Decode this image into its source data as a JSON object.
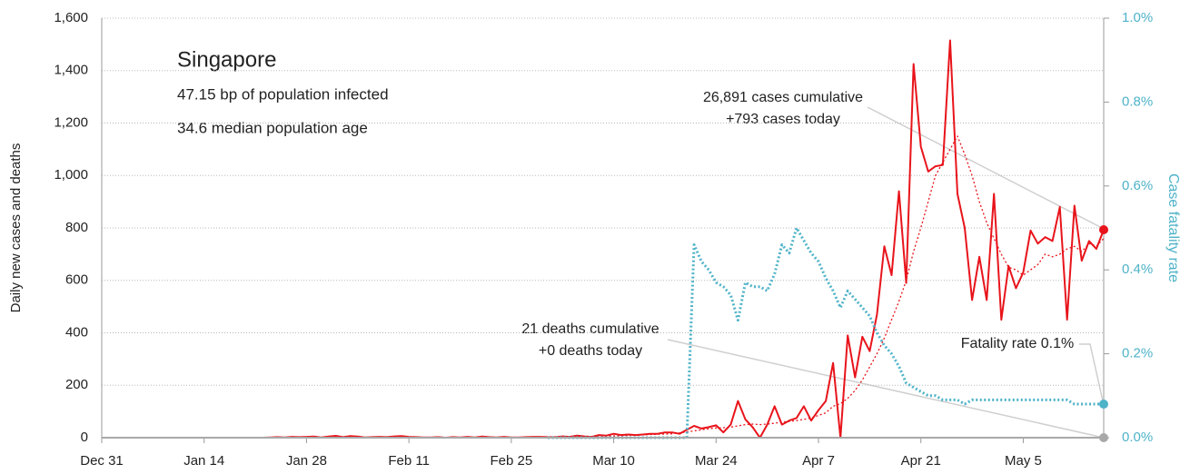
{
  "chart_data": {
    "type": "line",
    "title": "Singapore",
    "subtitles": [
      "47.15 bp of population infected",
      "34.6 median population age"
    ],
    "ylabel": "Daily new cases and deaths",
    "y2label": "Case fatality rate",
    "annotations": [
      [
        "26,891 cases cumulative",
        "+793 cases today"
      ],
      [
        "21 deaths cumulative",
        "+0 deaths today"
      ],
      [
        "Fatality rate 0.1%"
      ]
    ],
    "x": [
      "Dec 31",
      "Jan 1",
      "Jan 2",
      "Jan 3",
      "Jan 4",
      "Jan 5",
      "Jan 6",
      "Jan 7",
      "Jan 8",
      "Jan 9",
      "Jan 10",
      "Jan 11",
      "Jan 12",
      "Jan 13",
      "Jan 14",
      "Jan 15",
      "Jan 16",
      "Jan 17",
      "Jan 18",
      "Jan 19",
      "Jan 20",
      "Jan 21",
      "Jan 22",
      "Jan 23",
      "Jan 24",
      "Jan 25",
      "Jan 26",
      "Jan 27",
      "Jan 28",
      "Jan 29",
      "Jan 30",
      "Jan 31",
      "Feb 1",
      "Feb 2",
      "Feb 3",
      "Feb 4",
      "Feb 5",
      "Feb 6",
      "Feb 7",
      "Feb 8",
      "Feb 9",
      "Feb 10",
      "Feb 11",
      "Feb 12",
      "Feb 13",
      "Feb 14",
      "Feb 15",
      "Feb 16",
      "Feb 17",
      "Feb 18",
      "Feb 19",
      "Feb 20",
      "Feb 21",
      "Feb 22",
      "Feb 23",
      "Feb 24",
      "Feb 25",
      "Feb 26",
      "Feb 27",
      "Feb 28",
      "Feb 29",
      "Mar 1",
      "Mar 2",
      "Mar 3",
      "Mar 4",
      "Mar 5",
      "Mar 6",
      "Mar 7",
      "Mar 8",
      "Mar 9",
      "Mar 10",
      "Mar 11",
      "Mar 12",
      "Mar 13",
      "Mar 14",
      "Mar 15",
      "Mar 16",
      "Mar 17",
      "Mar 18",
      "Mar 19",
      "Mar 20",
      "Mar 21",
      "Mar 22",
      "Mar 23",
      "Mar 24",
      "Mar 25",
      "Mar 26",
      "Mar 27",
      "Mar 28",
      "Mar 29",
      "Mar 30",
      "Mar 31",
      "Apr 1",
      "Apr 2",
      "Apr 3",
      "Apr 4",
      "Apr 5",
      "Apr 6",
      "Apr 7",
      "Apr 8",
      "Apr 9",
      "Apr 10",
      "Apr 11",
      "Apr 12",
      "Apr 13",
      "Apr 14",
      "Apr 15",
      "Apr 16",
      "Apr 17",
      "Apr 18",
      "Apr 19",
      "Apr 20",
      "Apr 21",
      "Apr 22",
      "Apr 23",
      "Apr 24",
      "Apr 25",
      "Apr 26",
      "Apr 27",
      "Apr 28",
      "Apr 29",
      "Apr 30",
      "May 1",
      "May 2",
      "May 3",
      "May 4",
      "May 5",
      "May 6",
      "May 7",
      "May 8",
      "May 9",
      "May 10",
      "May 11",
      "May 12",
      "May 13",
      "May 14",
      "May 15",
      "May 16"
    ],
    "xticks": [
      "Dec 31",
      "Jan 14",
      "Jan 28",
      "Feb 11",
      "Feb 25",
      "Mar 10",
      "Mar 24",
      "Apr 7",
      "Apr 21",
      "May 5"
    ],
    "ylim": [
      0,
      1600
    ],
    "yticks": [
      0,
      200,
      400,
      600,
      800,
      {
        "value": 1000,
        "label": "1,000"
      },
      {
        "value": 1200,
        "label": "1,200"
      },
      {
        "value": 1400,
        "label": "1,400"
      },
      {
        "value": 1600,
        "label": "1,600"
      }
    ],
    "y2lim": [
      0,
      1
    ],
    "y2ticks": [
      {
        "value": 0,
        "label": "0.0%"
      },
      {
        "value": 0.2,
        "label": "0.2%"
      },
      {
        "value": 0.4,
        "label": "0.4%"
      },
      {
        "value": 0.6,
        "label": "0.6%"
      },
      {
        "value": 0.8,
        "label": "0.8%"
      },
      {
        "value": 1,
        "label": "1.0%"
      }
    ],
    "grid": true,
    "series": [
      {
        "color": "#e8141b",
        "dash": false,
        "width": 2,
        "end_marker": true,
        "values": [
          0,
          0,
          0,
          0,
          0,
          0,
          0,
          0,
          0,
          0,
          0,
          0,
          0,
          0,
          0,
          0,
          0,
          0,
          0,
          0,
          0,
          0,
          0,
          1,
          2,
          1,
          3,
          2,
          3,
          4,
          1,
          4,
          7,
          2,
          6,
          4,
          1,
          2,
          3,
          2,
          5,
          6,
          3,
          2,
          1,
          1,
          2,
          0,
          2,
          1,
          3,
          1,
          4,
          2,
          1,
          3,
          1,
          1,
          2,
          3,
          3,
          2,
          2,
          5,
          3,
          8,
          5,
          3,
          10,
          8,
          15,
          10,
          12,
          10,
          12,
          15,
          15,
          20,
          20,
          15,
          30,
          45,
          35,
          40,
          47,
          20,
          50,
          140,
          70,
          40,
          0,
          50,
          120,
          50,
          65,
          75,
          120,
          65,
          105,
          140,
          285,
          0,
          390,
          230,
          385,
          330,
          470,
          730,
          620,
          940,
          590,
          1425,
          1110,
          1015,
          1035,
          1040,
          1515,
          930,
          800,
          525,
          690,
          525,
          930,
          450,
          655,
          570,
          630,
          790,
          740,
          765,
          750,
          880,
          450,
          885,
          675,
          750,
          720,
          793
        ]
      },
      {
        "color": "#e8141b",
        "dash": true,
        "width": 1.3,
        "end_marker": false,
        "values": [
          null,
          null,
          null,
          null,
          null,
          null,
          null,
          null,
          null,
          null,
          null,
          null,
          null,
          null,
          null,
          null,
          null,
          null,
          null,
          null,
          null,
          null,
          null,
          null,
          null,
          null,
          null,
          null,
          null,
          null,
          null,
          null,
          null,
          null,
          null,
          null,
          null,
          null,
          null,
          null,
          null,
          null,
          null,
          null,
          null,
          null,
          null,
          null,
          null,
          null,
          null,
          null,
          null,
          null,
          null,
          null,
          null,
          null,
          null,
          null,
          null,
          3,
          3,
          4,
          4,
          4,
          5,
          5,
          5,
          6,
          7,
          8,
          9,
          10,
          11,
          12,
          13,
          14,
          15,
          18,
          22,
          26,
          30,
          34,
          37,
          38,
          40,
          45,
          50,
          52,
          50,
          52,
          55,
          60,
          62,
          65,
          70,
          75,
          85,
          95,
          120,
          130,
          150,
          180,
          220,
          270,
          320,
          380,
          450,
          520,
          600,
          710,
          800,
          900,
          1000,
          1050,
          1100,
          1150,
          1080,
          1000,
          900,
          820,
          760,
          700,
          650,
          640,
          620,
          640,
          660,
          700,
          690,
          700,
          720,
          730,
          710,
          740,
          730,
          760
        ]
      },
      {
        "color": "#4fb3c8",
        "dash": true,
        "width": 3,
        "axis": "y2",
        "end_marker": true,
        "values": [
          null,
          null,
          null,
          null,
          null,
          null,
          null,
          null,
          null,
          null,
          null,
          null,
          null,
          null,
          null,
          null,
          null,
          null,
          null,
          null,
          null,
          null,
          null,
          null,
          null,
          null,
          null,
          null,
          null,
          null,
          null,
          null,
          null,
          null,
          null,
          null,
          null,
          null,
          null,
          null,
          null,
          null,
          null,
          null,
          null,
          null,
          null,
          null,
          null,
          null,
          null,
          null,
          null,
          null,
          null,
          null,
          null,
          null,
          null,
          null,
          null,
          0,
          0,
          0,
          0,
          0,
          0,
          0,
          0,
          0,
          0,
          0,
          0,
          0,
          0,
          0,
          0,
          0,
          0,
          0,
          0,
          0.46,
          0.42,
          0.4,
          0.37,
          0.36,
          0.34,
          0.28,
          0.37,
          0.36,
          0.36,
          0.35,
          0.39,
          0.46,
          0.44,
          0.5,
          0.47,
          0.44,
          0.42,
          0.38,
          0.35,
          0.31,
          0.35,
          0.33,
          0.31,
          0.29,
          0.25,
          0.22,
          0.2,
          0.17,
          0.13,
          0.12,
          0.11,
          0.1,
          0.1,
          0.09,
          0.09,
          0.09,
          0.08,
          0.09,
          0.09,
          0.09,
          0.09,
          0.09,
          0.09,
          0.09,
          0.09,
          0.09,
          0.09,
          0.09,
          0.09,
          0.09,
          0.09,
          0.08,
          0.08,
          0.08,
          0.08,
          0.08
        ]
      },
      {
        "color": "#a8a8a8",
        "dash": false,
        "width": 2,
        "end_marker": true,
        "values": [
          0,
          0,
          0,
          0,
          0,
          0,
          0,
          0,
          0,
          0,
          0,
          0,
          0,
          0,
          0,
          0,
          0,
          0,
          0,
          0,
          0,
          0,
          0,
          0,
          0,
          0,
          0,
          0,
          0,
          0,
          0,
          0,
          0,
          0,
          0,
          0,
          0,
          0,
          0,
          0,
          0,
          0,
          0,
          0,
          0,
          0,
          0,
          0,
          0,
          0,
          0,
          0,
          0,
          0,
          0,
          0,
          0,
          0,
          0,
          0,
          0,
          0,
          0,
          0,
          0,
          0,
          0,
          0,
          0,
          0,
          0,
          0,
          0,
          0,
          0,
          0,
          0,
          0,
          0,
          0,
          0,
          0,
          0,
          0,
          0,
          0,
          0,
          0,
          0,
          0,
          0,
          0,
          0,
          0,
          0,
          0,
          0,
          0,
          0,
          0,
          0,
          0,
          0,
          0,
          0,
          0,
          0,
          0,
          0,
          0,
          0,
          0,
          0,
          0,
          0,
          0,
          0,
          0,
          0,
          0,
          0,
          0,
          0,
          0,
          0,
          0,
          0,
          0,
          0,
          0,
          0,
          0,
          0,
          0,
          0,
          0,
          0,
          0
        ]
      }
    ]
  }
}
